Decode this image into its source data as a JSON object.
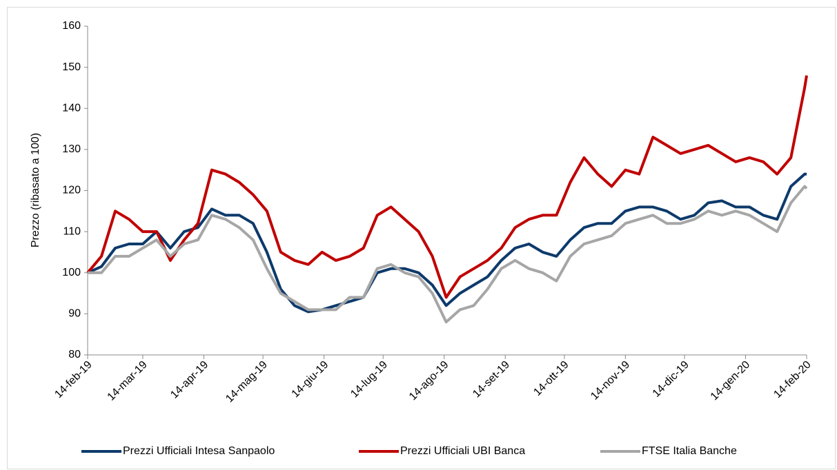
{
  "chart_data": {
    "type": "line",
    "y_label": "Prezzo (ribasato a 100)",
    "x": [
      "2019-02-14",
      "2019-02-21",
      "2019-02-28",
      "2019-03-07",
      "2019-03-14",
      "2019-03-21",
      "2019-03-28",
      "2019-04-04",
      "2019-04-11",
      "2019-04-18",
      "2019-04-25",
      "2019-05-02",
      "2019-05-09",
      "2019-05-16",
      "2019-05-23",
      "2019-05-30",
      "2019-06-06",
      "2019-06-13",
      "2019-06-20",
      "2019-06-27",
      "2019-07-04",
      "2019-07-11",
      "2019-07-18",
      "2019-07-25",
      "2019-08-01",
      "2019-08-08",
      "2019-08-15",
      "2019-08-22",
      "2019-08-29",
      "2019-09-05",
      "2019-09-12",
      "2019-09-19",
      "2019-09-26",
      "2019-10-03",
      "2019-10-10",
      "2019-10-17",
      "2019-10-24",
      "2019-10-31",
      "2019-11-07",
      "2019-11-14",
      "2019-11-21",
      "2019-11-28",
      "2019-12-05",
      "2019-12-12",
      "2019-12-19",
      "2019-12-26",
      "2020-01-02",
      "2020-01-09",
      "2020-01-16",
      "2020-01-23",
      "2020-01-30",
      "2020-02-06",
      "2020-02-13",
      "2020-02-14"
    ],
    "series": [
      {
        "name": "Prezzi Ufficiali Intesa Sanpaolo",
        "color": "#0d3a6b",
        "values": [
          100,
          101.5,
          106,
          107,
          107,
          110,
          106,
          110,
          111,
          115.5,
          114,
          114,
          112,
          105,
          96,
          92,
          90.5,
          91,
          92,
          93,
          94,
          100,
          101,
          101,
          100,
          97,
          92,
          95,
          97,
          99,
          103,
          106,
          107,
          105,
          104,
          108,
          111,
          112,
          112,
          115,
          116,
          116,
          115,
          113,
          114,
          117,
          117.5,
          116,
          116,
          114,
          113,
          121,
          124,
          124
        ]
      },
      {
        "name": "Prezzi Ufficiali UBI Banca",
        "color": "#c00000",
        "values": [
          100,
          104,
          115,
          113,
          110,
          110,
          103,
          108,
          112,
          125,
          124,
          122,
          119,
          115,
          105,
          103,
          102,
          105,
          103,
          104,
          106,
          114,
          116,
          113,
          110,
          104,
          94,
          99,
          101,
          103,
          106,
          111,
          113,
          114,
          114,
          122,
          128,
          124,
          121,
          125,
          124,
          133,
          131,
          129,
          130,
          131,
          129,
          127,
          128,
          127,
          124,
          128,
          145,
          148
        ]
      },
      {
        "name": "FTSE Italia Banche",
        "color": "#a6a6a6",
        "values": [
          100,
          100,
          104,
          104,
          106,
          108,
          104,
          107,
          108,
          114,
          113,
          111,
          108,
          101,
          95,
          93,
          91,
          91,
          91,
          94,
          94,
          101,
          102,
          100,
          99,
          95,
          88,
          91,
          92,
          96,
          101,
          103,
          101,
          100,
          98,
          104,
          107,
          108,
          109,
          112,
          113,
          114,
          112,
          112,
          113,
          115,
          114,
          115,
          114,
          112,
          110,
          117,
          121,
          120.5
        ]
      }
    ],
    "xlim": [
      "2019-02-14",
      "2020-02-14"
    ],
    "xticks": [
      {
        "value": "2019-02-14",
        "label": "14-feb-19"
      },
      {
        "value": "2019-03-14",
        "label": "14-mar-19"
      },
      {
        "value": "2019-04-14",
        "label": "14-apr-19"
      },
      {
        "value": "2019-05-14",
        "label": "14-mag-19"
      },
      {
        "value": "2019-06-14",
        "label": "14-giu-19"
      },
      {
        "value": "2019-07-14",
        "label": "14-lug-19"
      },
      {
        "value": "2019-08-14",
        "label": "14-ago-19"
      },
      {
        "value": "2019-09-14",
        "label": "14-set-19"
      },
      {
        "value": "2019-10-14",
        "label": "14-ott-19"
      },
      {
        "value": "2019-11-14",
        "label": "14-nov-19"
      },
      {
        "value": "2019-12-14",
        "label": "14-dic-19"
      },
      {
        "value": "2020-01-14",
        "label": "14-gen-20"
      },
      {
        "value": "2020-02-14",
        "label": "14-feb-20"
      }
    ],
    "ylim": [
      80,
      160
    ],
    "yticks": [
      80,
      90,
      100,
      110,
      120,
      130,
      140,
      150,
      160
    ],
    "grid": false,
    "legend": "bottom"
  }
}
